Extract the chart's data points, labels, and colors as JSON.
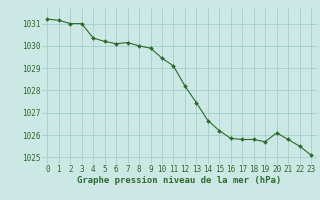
{
  "x": [
    0,
    1,
    2,
    3,
    4,
    5,
    6,
    7,
    8,
    9,
    10,
    11,
    12,
    13,
    14,
    15,
    16,
    17,
    18,
    19,
    20,
    21,
    22,
    23
  ],
  "y": [
    1031.2,
    1031.15,
    1031.0,
    1031.0,
    1030.35,
    1030.2,
    1030.1,
    1030.15,
    1030.0,
    1029.9,
    1029.45,
    1029.1,
    1028.2,
    1027.45,
    1026.65,
    1026.2,
    1025.85,
    1025.8,
    1025.8,
    1025.7,
    1026.1,
    1025.8,
    1025.5,
    1025.1
  ],
  "line_color": "#2d6a2d",
  "marker": "D",
  "marker_size": 2.0,
  "bg_color": "#cce8e4",
  "grid_color": "#99ccc6",
  "xlabel": "Graphe pression niveau de la mer (hPa)",
  "xlabel_color": "#2d6a2d",
  "xlabel_fontsize": 6.5,
  "tick_color": "#2d6a2d",
  "tick_fontsize": 5.5,
  "ylim": [
    1024.7,
    1031.7
  ],
  "yticks": [
    1025,
    1026,
    1027,
    1028,
    1029,
    1030,
    1031
  ],
  "xlim": [
    -0.5,
    23.5
  ],
  "xticks": [
    0,
    1,
    2,
    3,
    4,
    5,
    6,
    7,
    8,
    9,
    10,
    11,
    12,
    13,
    14,
    15,
    16,
    17,
    18,
    19,
    20,
    21,
    22,
    23
  ]
}
